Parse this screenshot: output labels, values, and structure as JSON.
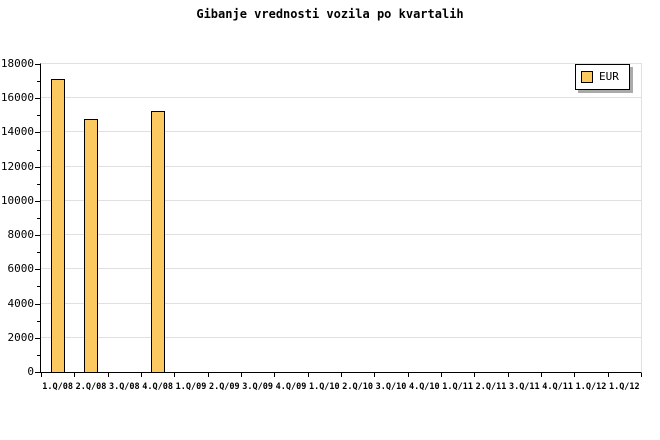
{
  "legend": {
    "label": "EUR"
  },
  "colors": {
    "background": "#ffffff",
    "bar_fill": "#fcc860",
    "bar_border": "#000000",
    "grid": "#e0e0e0",
    "axis": "#000000",
    "legend_shadow": "#aaaaaa"
  },
  "chart_data": {
    "type": "bar",
    "title": "Gibanje vrednosti vozila po kvartalih",
    "categories": [
      "1.Q/08",
      "2.Q/08",
      "3.Q/08",
      "4.Q/08",
      "1.Q/09",
      "2.Q/09",
      "3.Q/09",
      "4.Q/09",
      "1.Q/10",
      "2.Q/10",
      "3.Q/10",
      "4.Q/10",
      "1.Q/11",
      "2.Q/11",
      "3.Q/11",
      "4.Q/11",
      "1.Q/12",
      "1.Q/12"
    ],
    "series": [
      {
        "name": "EUR",
        "values": [
          17100,
          14800,
          null,
          15250,
          null,
          null,
          null,
          null,
          null,
          null,
          null,
          null,
          null,
          null,
          null,
          null,
          null,
          null
        ]
      }
    ],
    "xlabel": "",
    "ylabel": "",
    "ylim": [
      0,
      18000
    ],
    "ytick_major": 2000,
    "ytick_minor": 1000,
    "ytick_labels": [
      "0",
      "2000",
      "4000",
      "6000",
      "8000",
      "10000",
      "12000",
      "14000",
      "16000",
      "18000"
    ],
    "grid": true,
    "legend_position": "top-right"
  }
}
